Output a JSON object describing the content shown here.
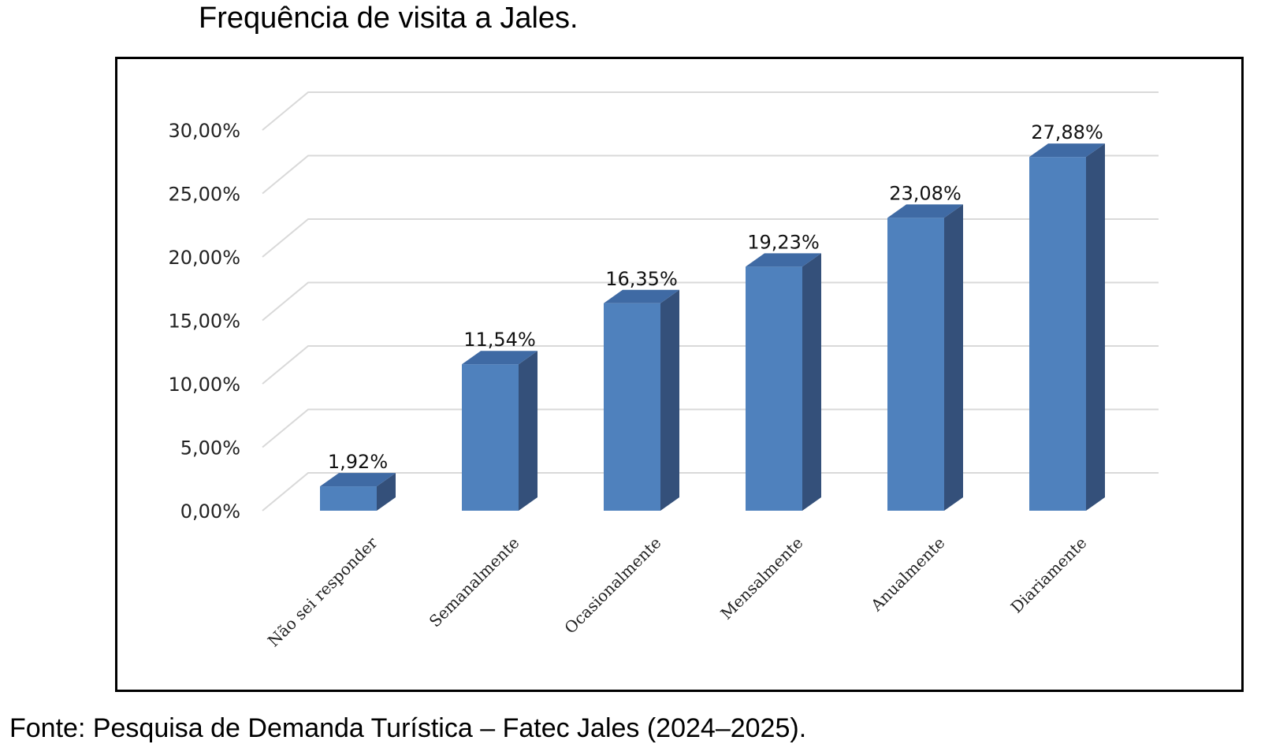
{
  "title": "Frequência de visita a Jales.",
  "source": "Fonte: Pesquisa de Demanda Turística – Fatec Jales (2024–2025).",
  "colors": {
    "bar_front": "#4f81bd",
    "bar_side": "#34507a",
    "bar_top": "#3f6aa4",
    "grid": "#d9d9d9"
  },
  "chart_data": {
    "type": "bar",
    "categories": [
      "Não sei responder",
      "Semanalmente",
      "Ocasionalmente",
      "Mensalmente",
      "Anualmente",
      "Diariamente"
    ],
    "values": [
      1.92,
      11.54,
      16.35,
      19.23,
      23.08,
      27.88
    ],
    "data_labels": [
      "1,92%",
      "11,54%",
      "16,35%",
      "19,23%",
      "23,08%",
      "27,88%"
    ],
    "yticks": [
      0,
      5,
      10,
      15,
      20,
      25,
      30
    ],
    "ytick_labels": [
      "0,00%",
      "5,00%",
      "10,00%",
      "15,00%",
      "20,00%",
      "25,00%",
      "30,00%"
    ],
    "ylim": [
      0,
      30
    ],
    "grid": true,
    "legend": false,
    "style": "3d-column"
  }
}
